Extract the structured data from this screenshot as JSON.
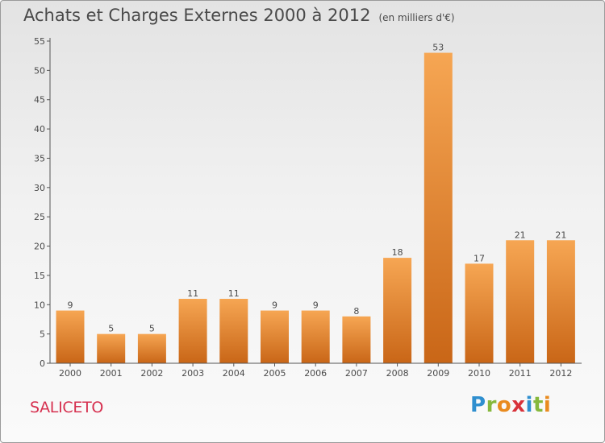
{
  "title": "Achats et Charges Externes 2000 à 2012",
  "unit": "(en milliers d'€)",
  "commune": "SALICETO",
  "logo": {
    "letters": [
      "P",
      "r",
      "o",
      "x",
      "i",
      "t",
      "i"
    ],
    "colors": [
      "#2f8fcf",
      "#86b83c",
      "#e98b1f",
      "#d8323a",
      "#2f8fcf",
      "#86b83c",
      "#e98b1f"
    ]
  },
  "colors": {
    "bar_top": "#f6a653",
    "bar_bottom": "#c96617",
    "axis": "#555555",
    "text": "#4a4a4a"
  },
  "chart_data": {
    "type": "bar",
    "categories": [
      "2000",
      "2001",
      "2002",
      "2003",
      "2004",
      "2005",
      "2006",
      "2007",
      "2008",
      "2009",
      "2010",
      "2011",
      "2012"
    ],
    "values": [
      9,
      5,
      5,
      11,
      11,
      9,
      9,
      8,
      18,
      53,
      17,
      21,
      21
    ],
    "ylim": [
      0,
      55
    ],
    "yticks": [
      0,
      5,
      10,
      15,
      20,
      25,
      30,
      35,
      40,
      45,
      50,
      55
    ],
    "data_labels": true,
    "grid": false
  }
}
